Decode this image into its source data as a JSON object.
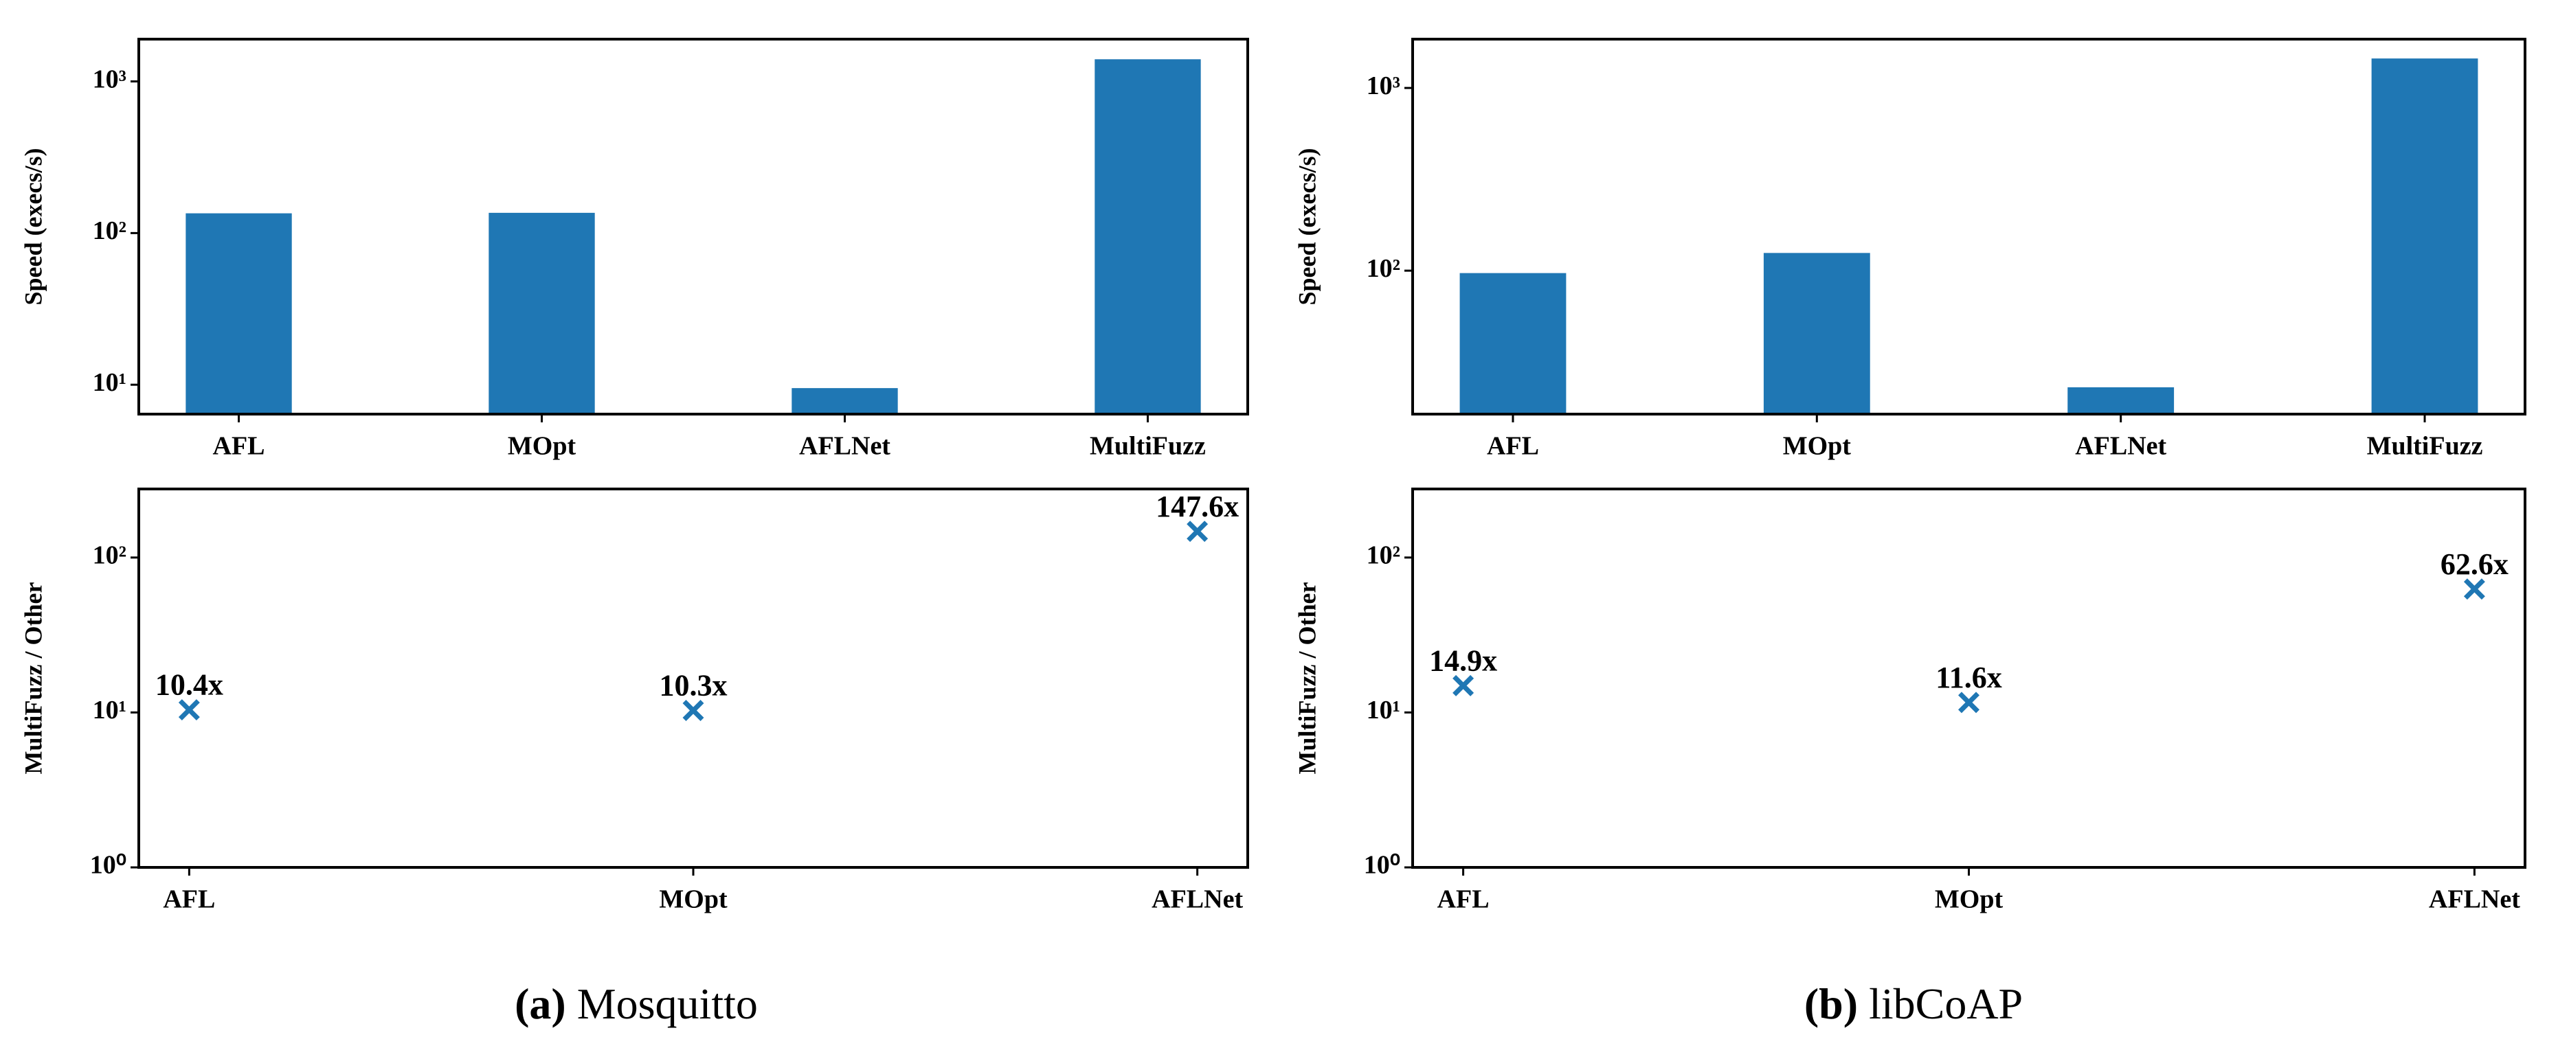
{
  "chart_data": [
    {
      "type": "bar",
      "ylabel": "Speed (execs/s)",
      "log": true,
      "color": "#1f77b4",
      "categories": [
        "AFL",
        "MOpt",
        "AFLNet",
        "MultiFuzz"
      ],
      "values": [
        135,
        136,
        9.5,
        1400
      ],
      "ylim": [
        6.4,
        1900
      ],
      "yticks": [
        {
          "value": 10,
          "label": "10¹"
        },
        {
          "value": 100,
          "label": "10²"
        },
        {
          "value": 1000,
          "label": "10³"
        }
      ]
    },
    {
      "type": "bar",
      "ylabel": "Speed (execs/s)",
      "log": true,
      "color": "#1f77b4",
      "categories": [
        "AFL",
        "MOpt",
        "AFLNet",
        "MultiFuzz"
      ],
      "values": [
        97,
        125,
        23,
        1450
      ],
      "ylim": [
        16.4,
        1850
      ],
      "yticks": [
        {
          "value": 100,
          "label": "10²"
        },
        {
          "value": 1000,
          "label": "10³"
        }
      ]
    },
    {
      "type": "scatter",
      "ylabel": "MultiFuzz / Other",
      "log": true,
      "color": "#1f77b4",
      "categories": [
        "AFL",
        "MOpt",
        "AFLNet"
      ],
      "values": [
        10.4,
        10.3,
        147.6
      ],
      "value_labels": [
        "10.4x",
        "10.3x",
        "147.6x"
      ],
      "ylim": [
        1,
        277
      ],
      "yticks": [
        {
          "value": 1,
          "label": "10⁰"
        },
        {
          "value": 10,
          "label": "10¹"
        },
        {
          "value": 100,
          "label": "10²"
        }
      ]
    },
    {
      "type": "scatter",
      "ylabel": "MultiFuzz / Other",
      "log": true,
      "color": "#1f77b4",
      "categories": [
        "AFL",
        "MOpt",
        "AFLNet"
      ],
      "values": [
        14.9,
        11.6,
        62.6
      ],
      "value_labels": [
        "14.9x",
        "11.6x",
        "62.6x"
      ],
      "ylim": [
        1,
        277
      ],
      "yticks": [
        {
          "value": 1,
          "label": "10⁰"
        },
        {
          "value": 10,
          "label": "10¹"
        },
        {
          "value": 100,
          "label": "10²"
        }
      ]
    }
  ],
  "captions": [
    {
      "label": "(a)",
      "text": "Mosquitto"
    },
    {
      "label": "(b)",
      "text": "libCoAP"
    }
  ]
}
